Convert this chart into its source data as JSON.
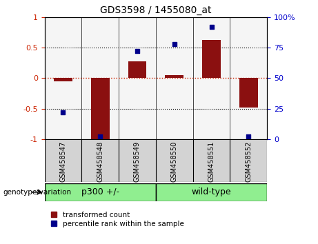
{
  "title": "GDS3598 / 1455080_at",
  "samples": [
    "GSM458547",
    "GSM458548",
    "GSM458549",
    "GSM458550",
    "GSM458551",
    "GSM458552"
  ],
  "red_values": [
    -0.05,
    -1.0,
    0.28,
    0.05,
    0.62,
    -0.48
  ],
  "blue_values": [
    22,
    2,
    72,
    78,
    92,
    2
  ],
  "group1_label": "p300 +/-",
  "group1_count": 3,
  "group2_label": "wild-type",
  "group2_count": 3,
  "group_label": "genotype/variation",
  "ylim_left": [
    -1.0,
    1.0
  ],
  "ylim_right": [
    0,
    100
  ],
  "yticks_left": [
    -1.0,
    -0.5,
    0.0,
    0.5,
    1.0
  ],
  "ytick_labels_left": [
    "-1",
    "-0.5",
    "0",
    "0.5",
    "1"
  ],
  "yticks_right": [
    0,
    25,
    50,
    75,
    100
  ],
  "ytick_labels_right": [
    "0",
    "25",
    "50",
    "75",
    "100%"
  ],
  "left_tick_color": "#cc2200",
  "right_tick_color": "#0000cc",
  "bar_color": "#8B1010",
  "dot_color": "#00008B",
  "hline0_color": "#cc2200",
  "hline_pm_color": "black",
  "plot_bg": "#f5f5f5",
  "sample_box_bg": "#d3d3d3",
  "group_bg": "#90EE90",
  "legend_red_label": "transformed count",
  "legend_blue_label": "percentile rank within the sample",
  "bar_width": 0.5,
  "dot_size": 18
}
